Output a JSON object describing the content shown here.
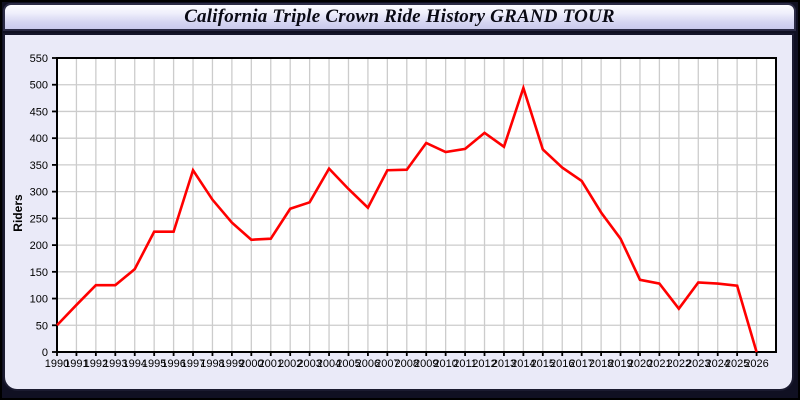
{
  "page": {
    "title": "California Triple Crown Ride History GRAND TOUR"
  },
  "colors": {
    "line": "#ff0000",
    "plot_background": "#ffffff",
    "panel_background": "#eaeaf8",
    "grid": "#cccccc",
    "axis": "#000000",
    "tick_label": "#000000",
    "page_background": "#101022"
  },
  "chart_data": {
    "type": "line",
    "title": "California Triple Crown Ride History GRAND TOUR",
    "xlabel": "",
    "ylabel": "Riders",
    "ylim": [
      0,
      550
    ],
    "yticks": [
      0,
      50,
      100,
      150,
      200,
      250,
      300,
      350,
      400,
      450,
      500,
      550
    ],
    "grid": true,
    "legend": "none",
    "x": [
      1990,
      1991,
      1992,
      1993,
      1994,
      1995,
      1996,
      1997,
      1998,
      1999,
      2000,
      2001,
      2002,
      2003,
      2004,
      2005,
      2006,
      2007,
      2008,
      2009,
      2010,
      2011,
      2012,
      2013,
      2014,
      2015,
      2016,
      2017,
      2018,
      2019,
      2020,
      2021,
      2022,
      2023,
      2024,
      2025,
      2026
    ],
    "series": [
      {
        "name": "Riders",
        "color": "#ff0000",
        "values": [
          50,
          88,
          125,
          125,
          155,
          225,
          225,
          340,
          285,
          242,
          210,
          212,
          268,
          280,
          343,
          305,
          270,
          340,
          341,
          391,
          374,
          380,
          410,
          384,
          494,
          379,
          345,
          320,
          261,
          212,
          135,
          128,
          81,
          130,
          128,
          124,
          0
        ]
      }
    ]
  }
}
